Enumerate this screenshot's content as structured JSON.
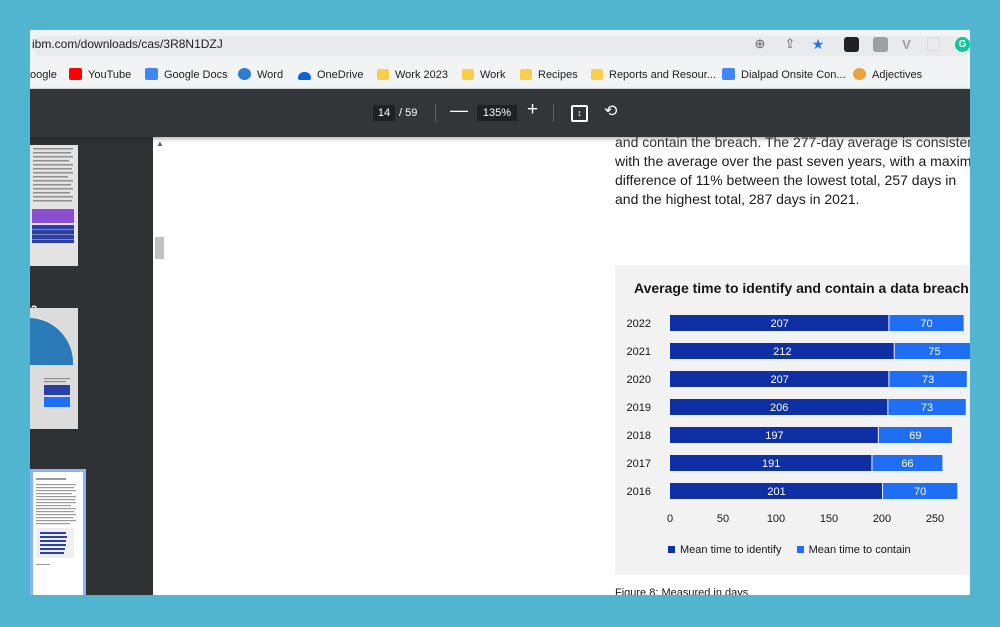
{
  "browser": {
    "url": "ibm.com/downloads/cas/3R8N1DZJ",
    "bookmarks": [
      "oogle",
      "YouTube",
      "Google Docs",
      "Word",
      "OneDrive",
      "Work 2023",
      "Work",
      "Recipes",
      "Reports and Resour...",
      "Dialpad Onsite Con...",
      "Adjectives"
    ]
  },
  "pdf_toolbar": {
    "current_page": "14",
    "total_pages": "/ 59",
    "zoom": "135%",
    "zoom_out_label": "—",
    "zoom_in_label": "+"
  },
  "thumbnails": {
    "labels": [
      "2",
      "3"
    ]
  },
  "document": {
    "body_lines": [
      "and contain the breach. The 277-day average is consistent",
      "with the average over the past seven years, with a maxim",
      "difference of 11% between the lowest total, 257 days in",
      "and the highest total, 287 days in 2021."
    ],
    "caption": "Figure 8: Measured in days"
  },
  "chart_data": {
    "type": "bar",
    "orientation": "horizontal",
    "stacked": true,
    "title": "Average time to identify and contain a data breach",
    "categories": [
      "2022",
      "2021",
      "2020",
      "2019",
      "2018",
      "2017",
      "2016"
    ],
    "series": [
      {
        "name": "Mean time to identify",
        "values": [
          207,
          212,
          207,
          206,
          197,
          191,
          201
        ],
        "color": "#0f2fa5"
      },
      {
        "name": "Mean time to contain",
        "values": [
          70,
          75,
          73,
          73,
          69,
          66,
          70
        ],
        "color": "#1f6ff5"
      }
    ],
    "xticks": [
      "0",
      "50",
      "100",
      "150",
      "200",
      "250"
    ],
    "xlim": [
      0,
      290
    ],
    "legend_position": "bottom",
    "grid": false
  }
}
